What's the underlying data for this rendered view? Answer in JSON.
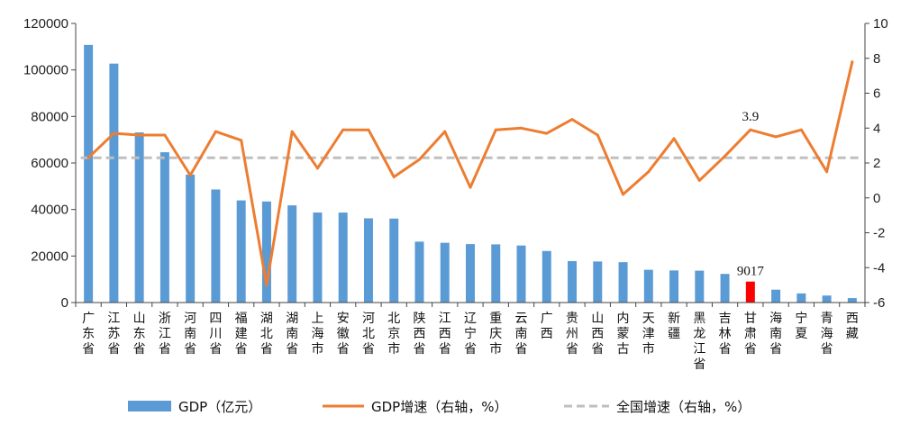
{
  "chart_data": {
    "type": "bar+line",
    "title": "",
    "categories": [
      "广东省",
      "江苏省",
      "山东省",
      "浙江省",
      "河南省",
      "四川省",
      "福建省",
      "湖北省",
      "湖南省",
      "上海市",
      "安徽省",
      "河北省",
      "北京市",
      "陕西省",
      "江西省",
      "辽宁省",
      "重庆市",
      "云南省",
      "广西",
      "贵州省",
      "山西省",
      "内蒙古",
      "天津市",
      "新疆",
      "黑龙江省",
      "吉林省",
      "甘肃省",
      "海南省",
      "宁夏",
      "青海省",
      "西藏"
    ],
    "series": [
      {
        "name": "GDP（亿元）",
        "type": "bar",
        "axis": "left",
        "color": "#5b9bd5",
        "highlight_index": 26,
        "highlight_color": "#ff0000",
        "values": [
          110760,
          102719,
          73129,
          64613,
          54997,
          48599,
          43904,
          43443,
          41781,
          38701,
          38681,
          36207,
          36103,
          26182,
          25692,
          25115,
          25003,
          24522,
          22157,
          17827,
          17652,
          17360,
          14084,
          13798,
          13699,
          12311,
          9017,
          5532,
          3921,
          3006,
          1903
        ]
      },
      {
        "name": "GDP增速（右轴，%）",
        "type": "line",
        "axis": "right",
        "color": "#ed7d31",
        "values": [
          2.3,
          3.7,
          3.6,
          3.6,
          1.3,
          3.8,
          3.3,
          -5.0,
          3.8,
          1.7,
          3.9,
          3.9,
          1.2,
          2.2,
          3.8,
          0.6,
          3.9,
          4.0,
          3.7,
          4.5,
          3.6,
          0.2,
          1.5,
          3.4,
          1.0,
          2.4,
          3.9,
          3.5,
          3.9,
          1.5,
          7.8
        ]
      },
      {
        "name": "全国增速（右轴，%）",
        "type": "reference-line",
        "axis": "right",
        "color": "#bfbfbf",
        "value": 2.3
      }
    ],
    "left_axis": {
      "min": 0,
      "max": 120000,
      "step": 20000
    },
    "right_axis": {
      "min": -6,
      "max": 10,
      "step": 2
    },
    "annotations": [
      {
        "series": 0,
        "index": 26,
        "text": "9017"
      },
      {
        "series": 1,
        "index": 26,
        "text": "3.9"
      }
    ],
    "legend_position": "bottom",
    "grid": false
  }
}
